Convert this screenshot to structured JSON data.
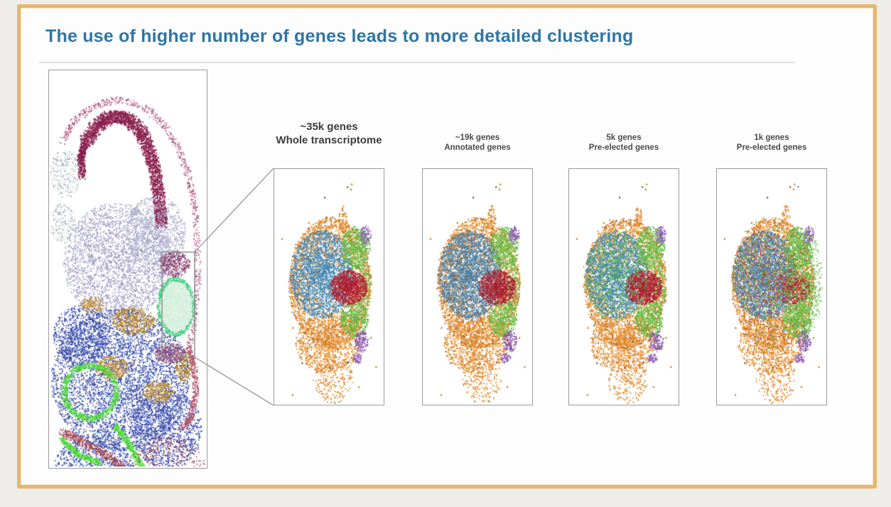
{
  "slide": {
    "title": "The use of higher number of genes leads to more detailed clustering",
    "title_color": "#2e76a6",
    "border_color": "#e4b76f",
    "outer_background": "#efedea",
    "slide_background": "#fdfdfe"
  },
  "figure": {
    "brain_panel": {
      "name": "clustered-tissue-section"
    },
    "scatter_panels": [
      {
        "id": "genes-35k",
        "label_line1": "~35k genes",
        "label_line2": "Whole transcriptome",
        "emphasis": true,
        "noise": 0,
        "mix_colors": [],
        "red_scale": 1
      },
      {
        "id": "genes-19k",
        "label_line1": "~19k genes",
        "label_line2": "Annotated genes",
        "emphasis": false,
        "noise": 0.38,
        "mix_colors": [
          "#7a6358",
          "#5f6b77",
          "#8a5a3a"
        ],
        "red_scale": 1
      },
      {
        "id": "genes-5k",
        "label_line1": "5k genes",
        "label_line2": "Pre-elected genes",
        "emphasis": false,
        "noise": 0.52,
        "mix_colors": [
          "#58b33a",
          "#3f9e4e",
          "#6abf45"
        ],
        "red_scale": 1
      },
      {
        "id": "genes-1k",
        "label_line1": "1k genes",
        "label_line2": "Pre-elected genes",
        "emphasis": false,
        "noise": 0.95,
        "mix_colors": [
          "#58b33a",
          "#8f5bb5",
          "#b32233",
          "#8a5a3a",
          "#3aa8c1",
          "#c8a22e"
        ],
        "red_scale": 0.55
      }
    ],
    "cluster_colors": {
      "orange": "#e58a2a",
      "orange_dark": "#cf7a1f",
      "blue": "#4588b3",
      "blue_dark": "#3a7aa6",
      "green": "#6abf45",
      "green_dark": "#55ad36",
      "red": "#b32233",
      "red_dark": "#9c1a2a",
      "purple": "#8f5bb5",
      "teal": "#3aa8c1",
      "outlier_brown": "#7a4a32"
    },
    "brain_colors": {
      "pink_edge": "#bb6a8e",
      "pink_edge_light": "#cf8fae",
      "maroon": "#8c2150",
      "maroon_dark": "#7e1b46",
      "maroon_light": "#9b2f5e",
      "lavender": "#a8a8ca",
      "lavender_dark": "#9898be",
      "lavender_light": "#b8b8d4",
      "pale_structure": "#d9e7dd",
      "pale_structure2": "#c9d8ce",
      "slate_speck": "#9aa4b8",
      "blue": "#3b4fae",
      "blue_dark": "#2c3e9a",
      "blue_light": "#5563c0",
      "mustard": "#c08a28",
      "mustard_light": "#d29a33",
      "bright_green": "#52dd3a",
      "bright_green_dark": "#3ecf2e",
      "bright_green_light": "#7bea5a",
      "mint": "#d8f0e0",
      "mint_light": "#e8f6ec",
      "mint_rim": "#4ed489",
      "dark_red": "#a34455",
      "dark_red_light": "#b25560",
      "purple_speck": "#8a4a78",
      "purple_speck_light": "#a05a84",
      "cyan": "#49c2c9"
    }
  }
}
